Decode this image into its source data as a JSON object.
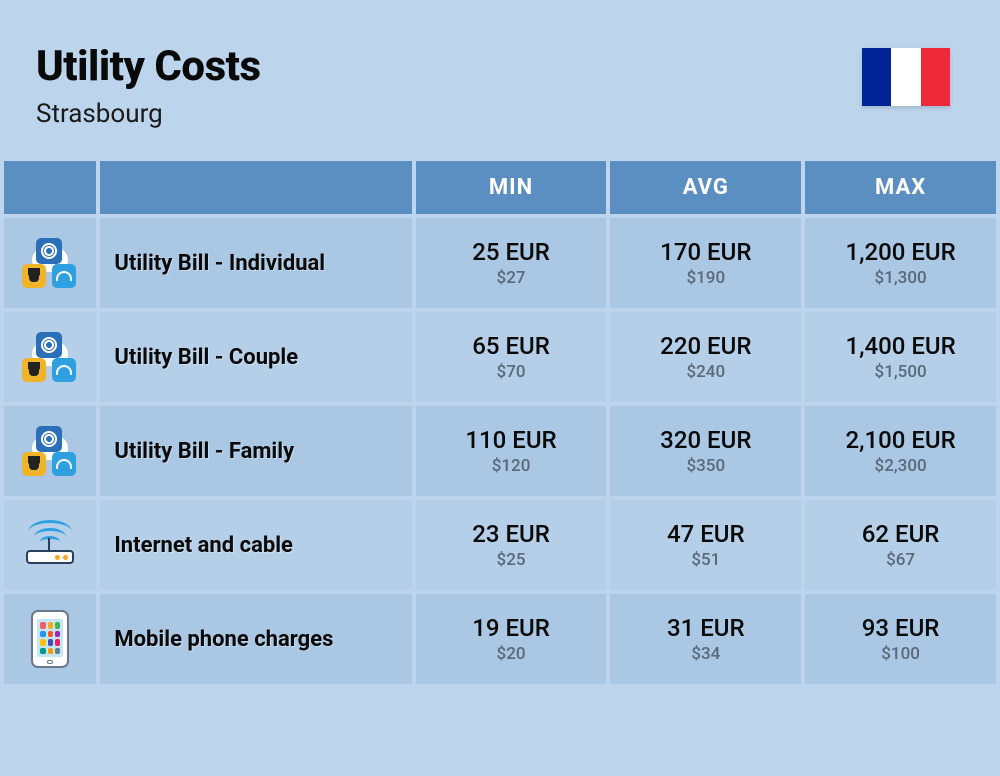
{
  "header": {
    "title": "Utility Costs",
    "subtitle": "Strasbourg",
    "flag_colors": [
      "#002395",
      "#ffffff",
      "#ed2939"
    ]
  },
  "columns": {
    "min": "MIN",
    "avg": "AVG",
    "max": "MAX"
  },
  "rows": [
    {
      "icon": "utility",
      "label": "Utility Bill - Individual",
      "min_eur": "25 EUR",
      "min_usd": "$27",
      "avg_eur": "170 EUR",
      "avg_usd": "$190",
      "max_eur": "1,200 EUR",
      "max_usd": "$1,300"
    },
    {
      "icon": "utility",
      "label": "Utility Bill - Couple",
      "min_eur": "65 EUR",
      "min_usd": "$70",
      "avg_eur": "220 EUR",
      "avg_usd": "$240",
      "max_eur": "1,400 EUR",
      "max_usd": "$1,500"
    },
    {
      "icon": "utility",
      "label": "Utility Bill - Family",
      "min_eur": "110 EUR",
      "min_usd": "$120",
      "avg_eur": "320 EUR",
      "avg_usd": "$350",
      "max_eur": "2,100 EUR",
      "max_usd": "$2,300"
    },
    {
      "icon": "router",
      "label": "Internet and cable",
      "min_eur": "23 EUR",
      "min_usd": "$25",
      "avg_eur": "47 EUR",
      "avg_usd": "$51",
      "max_eur": "62 EUR",
      "max_usd": "$67"
    },
    {
      "icon": "phone",
      "label": "Mobile phone charges",
      "min_eur": "19 EUR",
      "min_usd": "$20",
      "avg_eur": "31 EUR",
      "avg_usd": "$34",
      "max_eur": "93 EUR",
      "max_usd": "$100"
    }
  ],
  "colors": {
    "page_bg": "#bcd5ec",
    "header_cell_bg": "#5b8fc2",
    "row_bg_a": "#aac7e4",
    "row_bg_b": "#b5cfe8",
    "text_primary": "#0a0a0a",
    "text_secondary": "#5a6a7a"
  },
  "type": "table",
  "phone_app_colors": [
    "#f06060",
    "#f5a623",
    "#4caf50",
    "#2196f3",
    "#ff5722",
    "#9c27b0",
    "#ffc107",
    "#3f51b5",
    "#e91e63",
    "#009688",
    "#ff9800",
    "#607d8b"
  ]
}
